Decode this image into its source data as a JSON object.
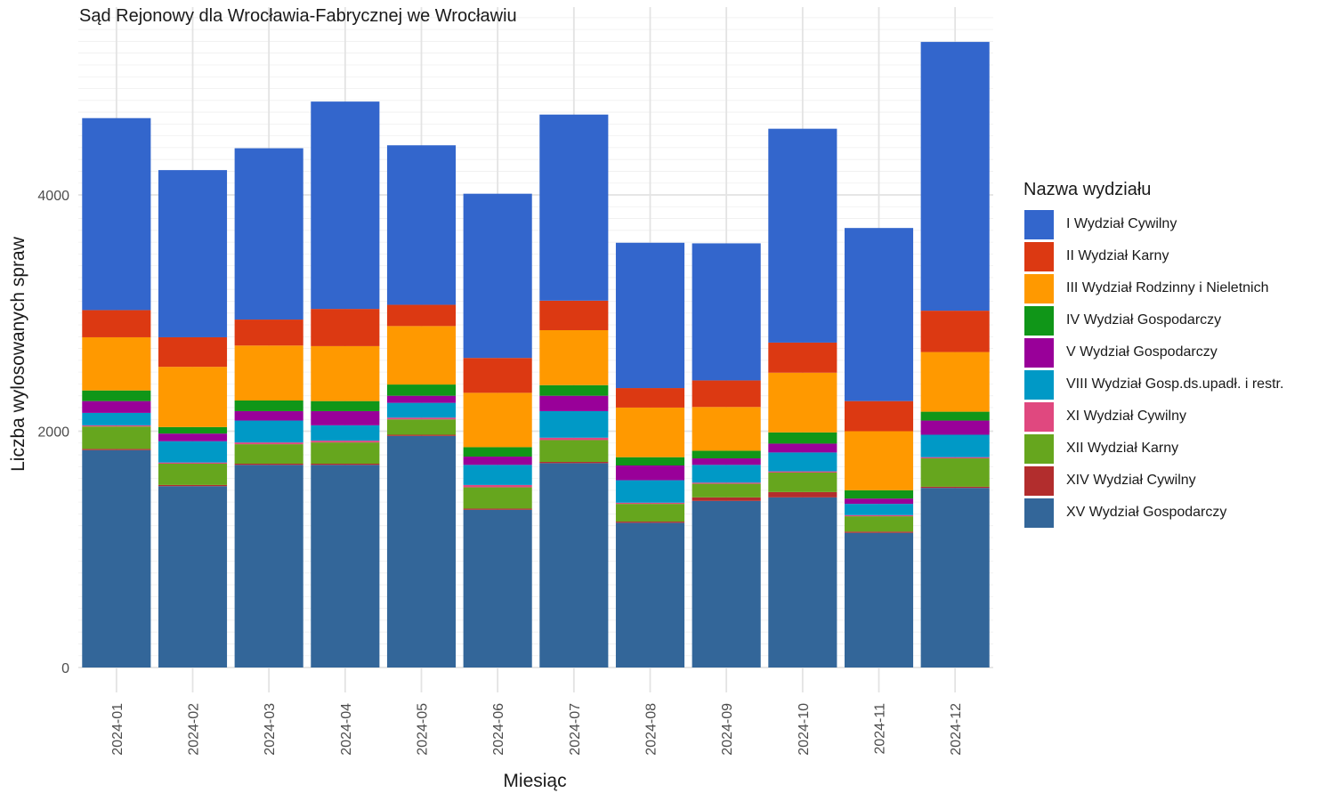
{
  "chart_data": {
    "type": "bar",
    "stacked": true,
    "title": "Sąd Rejonowy dla Wrocławia-Fabrycznej we Wrocławiu",
    "xlabel": "Miesiąc",
    "ylabel": "Liczba wylosowanych spraw",
    "ylim": [
      0,
      5550
    ],
    "y_ticks": [
      0,
      2000,
      4000
    ],
    "y_tick_labels": [
      "0",
      "2000",
      "4000"
    ],
    "grid": true,
    "legend_title": "Nazwa wydziału",
    "legend_position": "right",
    "categories": [
      "2024-01",
      "2024-02",
      "2024-03",
      "2024-04",
      "2024-05",
      "2024-06",
      "2024-07",
      "2024-08",
      "2024-09",
      "2024-10",
      "2024-11",
      "2024-12"
    ],
    "series": [
      {
        "name": "XV Wydział Gospodarczy",
        "color": "#336699",
        "values": [
          1840,
          1535,
          1715,
          1715,
          1960,
          1335,
          1730,
          1225,
          1410,
          1440,
          1140,
          1520
        ]
      },
      {
        "name": "XIV Wydział Cywilny",
        "color": "#B22D2D",
        "values": [
          10,
          10,
          10,
          10,
          10,
          10,
          10,
          10,
          30,
          45,
          10,
          10
        ]
      },
      {
        "name": "XII Wydział Karny",
        "color": "#66A61E",
        "values": [
          190,
          180,
          165,
          180,
          130,
          180,
          185,
          150,
          115,
          165,
          130,
          240
        ]
      },
      {
        "name": "XI Wydział Cywilny",
        "color": "#E0487F",
        "values": [
          10,
          10,
          15,
          15,
          15,
          20,
          20,
          10,
          10,
          10,
          10,
          10
        ]
      },
      {
        "name": "VIII Wydział Gosp.ds.upadł. i restr.",
        "color": "#0099C6",
        "values": [
          105,
          180,
          185,
          130,
          125,
          170,
          225,
          190,
          150,
          160,
          95,
          190
        ]
      },
      {
        "name": "V Wydział Gospodarczy",
        "color": "#990099",
        "values": [
          100,
          65,
          80,
          120,
          60,
          70,
          130,
          125,
          55,
          75,
          45,
          120
        ]
      },
      {
        "name": "IV Wydział Gospodarczy",
        "color": "#109618",
        "values": [
          90,
          55,
          90,
          85,
          95,
          80,
          90,
          70,
          65,
          95,
          70,
          75
        ]
      },
      {
        "name": "III Wydział Rodzinny i Nieletnich",
        "color": "#FF9900",
        "values": [
          450,
          510,
          465,
          465,
          495,
          460,
          465,
          420,
          370,
          505,
          500,
          505
        ]
      },
      {
        "name": "II Wydział Karny",
        "color": "#DC3912",
        "values": [
          230,
          250,
          220,
          315,
          180,
          295,
          250,
          165,
          225,
          255,
          255,
          350
        ]
      },
      {
        "name": "I Wydział Cywilny",
        "color": "#3366CC",
        "values": [
          1625,
          1415,
          1450,
          1755,
          1350,
          1390,
          1575,
          1230,
          1160,
          1810,
          1465,
          2275
        ]
      }
    ]
  }
}
